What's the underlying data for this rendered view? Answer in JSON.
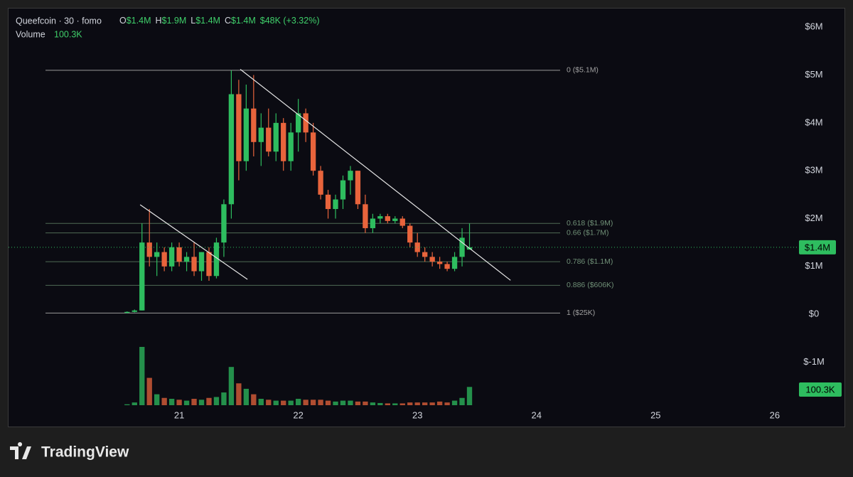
{
  "chart_data": {
    "type": "candlestick",
    "legend": {
      "symbol": "Queefcoin · 30 · fomo",
      "items": [
        {
          "key": "O",
          "value": "$1.4M"
        },
        {
          "key": "H",
          "value": "$1.9M"
        },
        {
          "key": "L",
          "value": "$1.4M"
        },
        {
          "key": "C",
          "value": "$1.4M"
        }
      ],
      "change": "$48K (+3.32%)",
      "volume_label": "Volume",
      "volume_value": "100.3K"
    },
    "up_color": "#2ebd5f",
    "down_color": "#e8643c",
    "grid": false,
    "xlim": [
      19.567,
      26.15
    ],
    "xticks": [
      21,
      22,
      23,
      24,
      25,
      26
    ],
    "ylim": [
      -1900000,
      6390000
    ],
    "yticks": [
      {
        "value": 6000000,
        "label": "$6M"
      },
      {
        "value": 5000000,
        "label": "$5M"
      },
      {
        "value": 4000000,
        "label": "$4M"
      },
      {
        "value": 3000000,
        "label": "$3M"
      },
      {
        "value": 2000000,
        "label": "$2M"
      },
      {
        "value": 1000000,
        "label": "$1M"
      },
      {
        "value": 0,
        "label": "$0"
      },
      {
        "value": -1000000,
        "label": "$-1M"
      }
    ],
    "candles": {
      "x": [
        20.5625,
        20.625,
        20.6875,
        20.75,
        20.8125,
        20.875,
        20.9375,
        21.0,
        21.0625,
        21.125,
        21.1875,
        21.25,
        21.3125,
        21.375,
        21.4375,
        21.5,
        21.5625,
        21.625,
        21.6875,
        21.75,
        21.8125,
        21.875,
        21.9375,
        22.0,
        22.0625,
        22.125,
        22.1875,
        22.25,
        22.3125,
        22.375,
        22.4375,
        22.5,
        22.5625,
        22.625,
        22.6875,
        22.75,
        22.8125,
        22.875,
        22.9375,
        23.0,
        23.0625,
        23.125,
        23.1875,
        23.25,
        23.3125,
        23.375,
        23.4375
      ],
      "open": [
        30000,
        50000,
        80000,
        1500000,
        1200000,
        1300000,
        1000000,
        1400000,
        1100000,
        1200000,
        900000,
        1300000,
        800000,
        1500000,
        2300000,
        4600000,
        3200000,
        4300000,
        3600000,
        3900000,
        3400000,
        4000000,
        3200000,
        3800000,
        4200000,
        3800000,
        3000000,
        2500000,
        2200000,
        2400000,
        2800000,
        3000000,
        2300000,
        1800000,
        2000000,
        2050000,
        1950000,
        2000000,
        1850000,
        1500000,
        1300000,
        1200000,
        1100000,
        1050000,
        950000,
        1200000,
        1352000
      ],
      "high": [
        60000,
        100000,
        1900000,
        2200000,
        1500000,
        1400000,
        1500000,
        1500000,
        1300000,
        1500000,
        1300000,
        1400000,
        1600000,
        2400000,
        5100000,
        4900000,
        4800000,
        5000000,
        4200000,
        4300000,
        4200000,
        4100000,
        4000000,
        4500000,
        4300000,
        4000000,
        3100000,
        2600000,
        2500000,
        2900000,
        3100000,
        3000000,
        2500000,
        2100000,
        2100000,
        2100000,
        2050000,
        2050000,
        1900000,
        1700000,
        1400000,
        1300000,
        1200000,
        1100000,
        1300000,
        1800000,
        1900000
      ],
      "low": [
        20000,
        40000,
        80000,
        1000000,
        800000,
        900000,
        900000,
        1000000,
        900000,
        800000,
        700000,
        700000,
        750000,
        1200000,
        2000000,
        2800000,
        3000000,
        3300000,
        3100000,
        3300000,
        3200000,
        3000000,
        3000000,
        3400000,
        3600000,
        2900000,
        2400000,
        2000000,
        2000000,
        2200000,
        2500000,
        2200000,
        1700000,
        1700000,
        1900000,
        1900000,
        1900000,
        1800000,
        1400000,
        1200000,
        1100000,
        1000000,
        950000,
        900000,
        900000,
        1000000,
        1350000
      ],
      "close": [
        50000,
        80000,
        1500000,
        1200000,
        1300000,
        1000000,
        1400000,
        1100000,
        1200000,
        900000,
        1300000,
        800000,
        1500000,
        2300000,
        4600000,
        3200000,
        4300000,
        3600000,
        3900000,
        3400000,
        4000000,
        3200000,
        3800000,
        4200000,
        3800000,
        3000000,
        2500000,
        2200000,
        2400000,
        2800000,
        3000000,
        2300000,
        1800000,
        2000000,
        2050000,
        1950000,
        2000000,
        1850000,
        1500000,
        1300000,
        1200000,
        1100000,
        1050000,
        950000,
        1200000,
        1600000,
        1400000
      ],
      "volume": [
        5000,
        15000,
        320000,
        150000,
        60000,
        40000,
        35000,
        30000,
        25000,
        35000,
        30000,
        40000,
        45000,
        70000,
        210000,
        120000,
        90000,
        60000,
        35000,
        30000,
        25000,
        25000,
        25000,
        35000,
        30000,
        30000,
        30000,
        25000,
        20000,
        25000,
        25000,
        20000,
        20000,
        15000,
        12000,
        10000,
        10000,
        10000,
        15000,
        15000,
        15000,
        15000,
        20000,
        15000,
        25000,
        40000,
        100300
      ]
    },
    "fib_levels": [
      {
        "label": "0 ($5.1M)",
        "value": 5100000
      },
      {
        "label": "0.618 ($1.9M)",
        "value": 1900000
      },
      {
        "label": "0.66 ($1.7M)",
        "value": 1700000
      },
      {
        "label": "0.786 ($1.1M)",
        "value": 1100000
      },
      {
        "label": "0.886 ($606K)",
        "value": 606000
      },
      {
        "label": "1 ($25K)",
        "value": 25000
      }
    ],
    "trendlines": [
      {
        "x": [
          20.672,
          21.573
        ],
        "y": [
          2290000,
          730000
        ]
      },
      {
        "x": [
          21.513,
          23.782
        ],
        "y": [
          5120000,
          710000
        ]
      }
    ]
  },
  "brand": "TradingView"
}
